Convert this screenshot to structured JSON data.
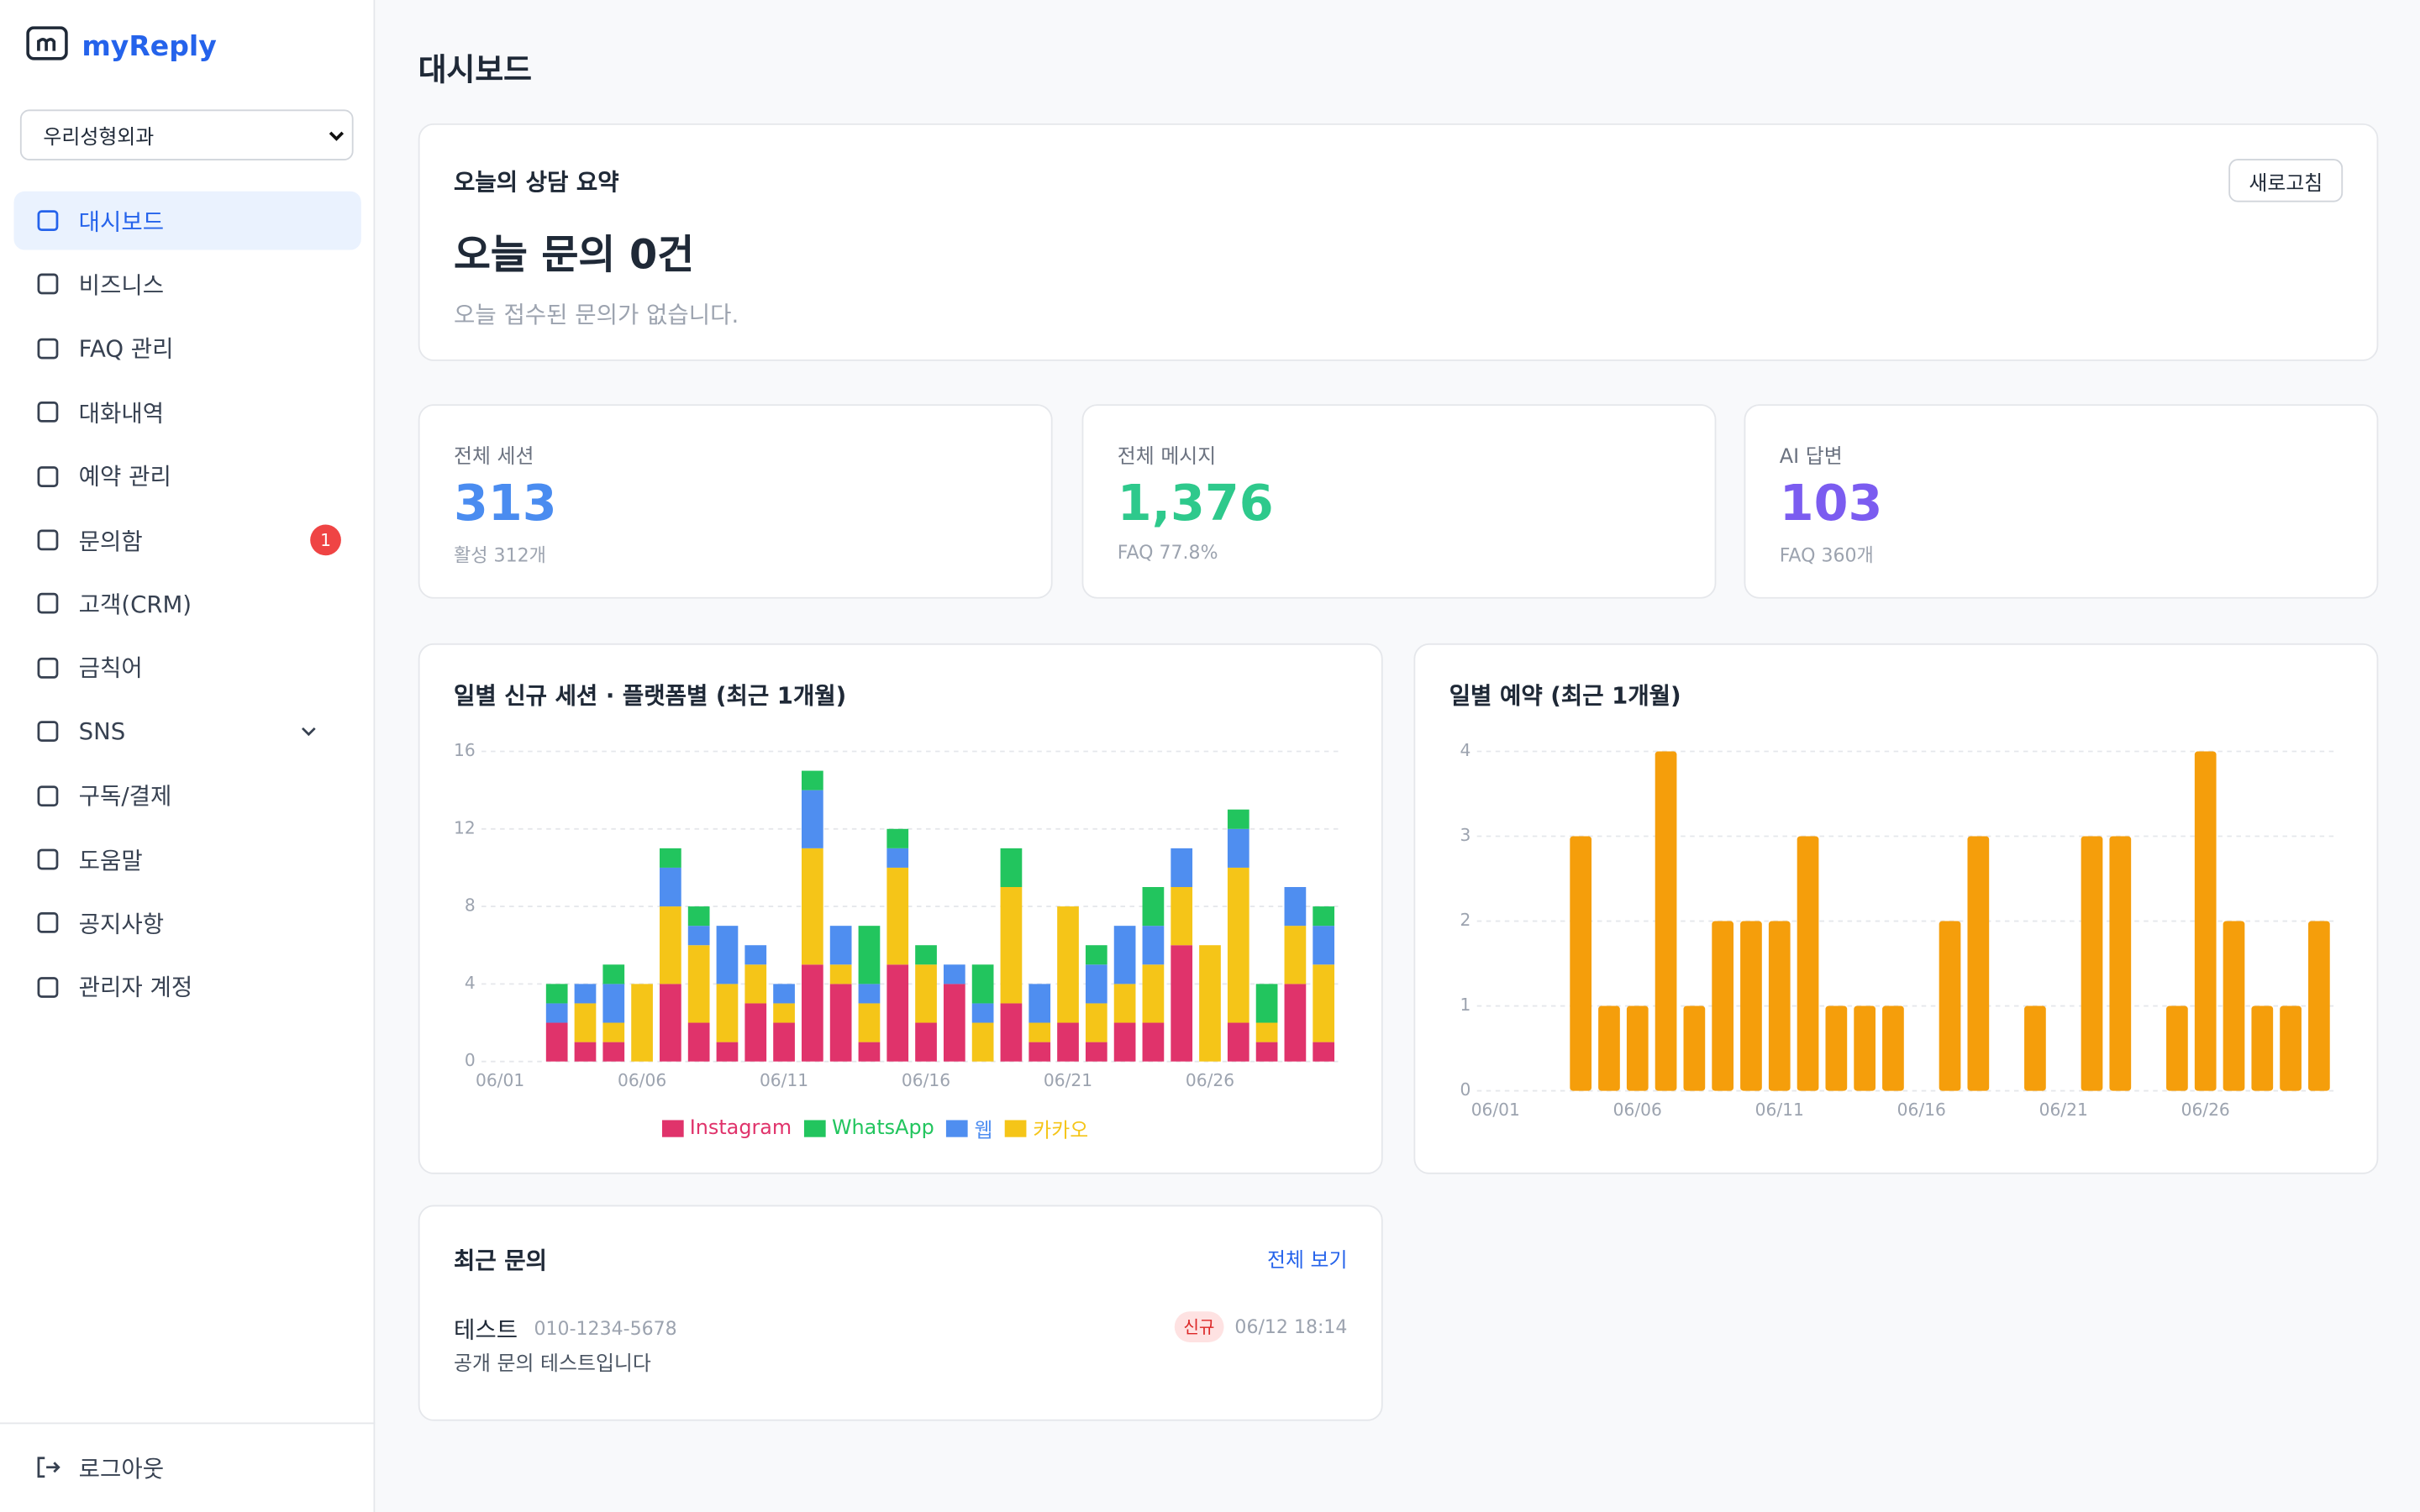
{
  "sidebar": {
    "brand": "myReply",
    "business_select": "우리성형외과",
    "menu": [
      {
        "label": "대시보드"
      },
      {
        "label": "비즈니스"
      },
      {
        "label": "FAQ 관리"
      },
      {
        "label": "대화내역"
      },
      {
        "label": "예약 관리"
      },
      {
        "label": "문의함",
        "badge": "1"
      },
      {
        "label": "고객(CRM)"
      },
      {
        "label": "금칙어"
      },
      {
        "label": "SNS"
      },
      {
        "label": "구독/결제"
      },
      {
        "label": "도움말"
      },
      {
        "label": "공지사항"
      },
      {
        "label": "관리자 계정"
      }
    ],
    "logout": "로그아웃"
  },
  "header": {
    "title": "대시보드"
  },
  "summary": {
    "title": "오늘의 상담 요약",
    "refresh": "새로고침",
    "headline": "오늘 문의 0건",
    "note": "오늘 접수된 문의가 없습니다."
  },
  "stats": [
    {
      "label": "전체 세션",
      "value": "313",
      "sub": "활성 312개",
      "color": "#4a8cf0"
    },
    {
      "label": "전체 메시지",
      "value": "1,376",
      "sub": "FAQ 77.8%",
      "color": "#2ec98c"
    },
    {
      "label": "AI 답변",
      "value": "103",
      "sub": "FAQ 360개",
      "color": "#7b5cf0"
    }
  ],
  "chart_data": [
    {
      "type": "bar",
      "stacked": true,
      "title": "일별 신규 세션 · 플랫폼별 (최근 1개월)",
      "categories": [
        "06/01",
        null,
        null,
        null,
        null,
        "06/06",
        null,
        null,
        null,
        null,
        "06/11",
        null,
        null,
        null,
        null,
        "06/16",
        null,
        null,
        null,
        null,
        "06/21",
        null,
        null,
        null,
        null,
        "06/26",
        null,
        null,
        null,
        null
      ],
      "ylim": [
        0,
        16
      ],
      "yticks": [
        0,
        4,
        8,
        12,
        16
      ],
      "grid": true,
      "series": [
        {
          "name": "Instagram",
          "color": "#e0336b",
          "values": [
            0,
            0,
            2,
            1,
            1,
            0,
            4,
            2,
            1,
            3,
            2,
            5,
            4,
            1,
            5,
            2,
            4,
            0,
            3,
            1,
            2,
            1,
            2,
            2,
            6,
            0,
            2,
            1,
            4,
            1
          ]
        },
        {
          "name": "WhatsApp",
          "color": "#22c55e",
          "values": [
            0,
            0,
            1,
            0,
            1,
            0,
            1,
            1,
            0,
            0,
            0,
            1,
            0,
            3,
            1,
            1,
            0,
            2,
            2,
            0,
            0,
            1,
            0,
            2,
            0,
            0,
            1,
            2,
            0,
            1
          ]
        },
        {
          "name": "웹",
          "color": "#4f8ef0",
          "values": [
            0,
            0,
            1,
            1,
            2,
            0,
            2,
            1,
            3,
            1,
            1,
            3,
            2,
            1,
            1,
            0,
            1,
            1,
            0,
            2,
            0,
            2,
            3,
            2,
            2,
            0,
            2,
            0,
            2,
            2
          ]
        },
        {
          "name": "카카오",
          "color": "#f5c518",
          "values": [
            0,
            0,
            0,
            2,
            1,
            4,
            4,
            4,
            3,
            2,
            1,
            6,
            1,
            2,
            5,
            3,
            0,
            2,
            6,
            1,
            6,
            2,
            2,
            3,
            3,
            6,
            8,
            1,
            3,
            4
          ]
        }
      ]
    },
    {
      "type": "bar",
      "title": "일별 예약 (최근 1개월)",
      "categories": [
        "06/01",
        null,
        null,
        null,
        null,
        "06/06",
        null,
        null,
        null,
        null,
        "06/11",
        null,
        null,
        null,
        null,
        "06/16",
        null,
        null,
        null,
        null,
        "06/21",
        null,
        null,
        null,
        null,
        "06/26",
        null,
        null,
        null,
        null
      ],
      "values": [
        0,
        0,
        0,
        3,
        1,
        1,
        4,
        1,
        2,
        2,
        2,
        3,
        1,
        1,
        1,
        0,
        2,
        3,
        0,
        1,
        0,
        3,
        3,
        0,
        1,
        4,
        2,
        1,
        1,
        2
      ],
      "color": "#f59e0b",
      "ylim": [
        0,
        4
      ],
      "yticks": [
        0,
        1,
        2,
        3,
        4
      ],
      "grid": true
    }
  ],
  "recent": {
    "title": "최근 문의",
    "view_all": "전체 보기",
    "items": [
      {
        "name": "테스트",
        "phone": "010-1234-5678",
        "badge": "신규",
        "date": "06/12 18:14",
        "message": "공개 문의 테스트입니다"
      }
    ]
  }
}
